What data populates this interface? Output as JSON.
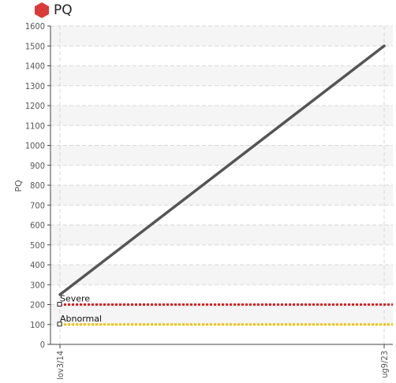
{
  "header": {
    "title": "PQ",
    "icon": "red-hexagon-icon",
    "icon_color": "#d93b3b"
  },
  "chart_data": {
    "type": "line",
    "ylabel": "PQ",
    "xlabel": "",
    "ylim": [
      0,
      1600
    ],
    "yticks": [
      0,
      100,
      200,
      300,
      400,
      500,
      600,
      700,
      800,
      900,
      1000,
      1100,
      1200,
      1300,
      1400,
      1500,
      1600
    ],
    "xticks": [
      "lov3/14",
      "ug9/23"
    ],
    "grid": true,
    "series": [
      {
        "x": [
          "lov3/14",
          "ug9/23"
        ],
        "values": [
          250,
          1500
        ],
        "color": "#555555"
      }
    ],
    "thresholds": [
      {
        "label": "Severe",
        "value": 200,
        "color": "#e02020"
      },
      {
        "label": "Abnormal",
        "value": 100,
        "color": "#f2c200"
      }
    ]
  }
}
